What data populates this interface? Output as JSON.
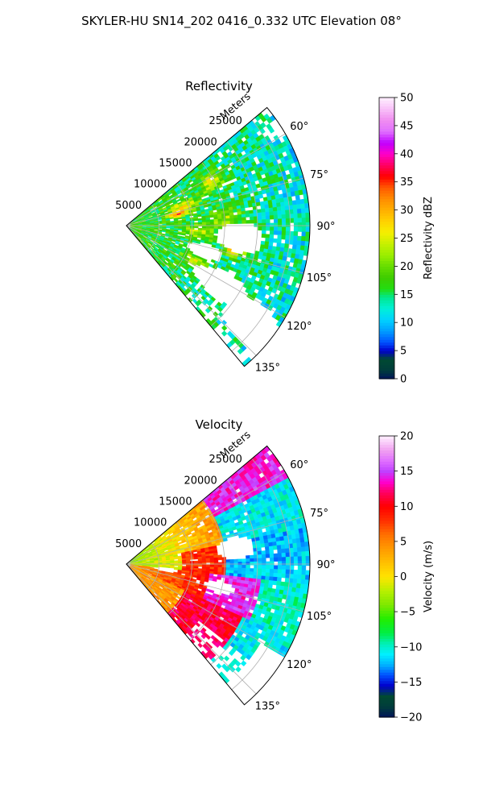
{
  "figure": {
    "suptitle": "SKYLER-HU  SN14_202  0416_0.332 UTC Elevation 08°"
  },
  "chart_data": [
    {
      "type": "heatmap",
      "title": "Reflectivity",
      "range_label": "Meters",
      "range_ticks": [
        5000,
        10000,
        15000,
        20000,
        25000
      ],
      "range_max": 28000,
      "azimuth_ticks": [
        "60°",
        "75°",
        "90°",
        "105°",
        "120°",
        "135°"
      ],
      "azimuth_values": [
        60,
        75,
        90,
        105,
        120,
        135
      ],
      "azimuth_range": [
        50,
        140
      ],
      "grid": true,
      "colorbar": {
        "label": "Reflectivity dBZ",
        "min": 0,
        "max": 50,
        "ticks": [
          0,
          5,
          10,
          15,
          20,
          25,
          30,
          35,
          40,
          45,
          50
        ],
        "tick_labels": [
          "0",
          "5",
          "10",
          "15",
          "20",
          "25",
          "30",
          "35",
          "40",
          "45",
          "50"
        ],
        "stops": [
          {
            "v": 0,
            "c": "#00145a"
          },
          {
            "v": 1.5,
            "c": "#003c3c"
          },
          {
            "v": 3.5,
            "c": "#004a32"
          },
          {
            "v": 5,
            "c": "#0000cd"
          },
          {
            "v": 6.5,
            "c": "#0050ff"
          },
          {
            "v": 8.5,
            "c": "#009cff"
          },
          {
            "v": 10.5,
            "c": "#00d2ff"
          },
          {
            "v": 12.5,
            "c": "#00f0d8"
          },
          {
            "v": 14.5,
            "c": "#00e890"
          },
          {
            "v": 16,
            "c": "#22dd11"
          },
          {
            "v": 18,
            "c": "#3ecc00"
          },
          {
            "v": 20,
            "c": "#66dd00"
          },
          {
            "v": 22,
            "c": "#99ee00"
          },
          {
            "v": 24,
            "c": "#c6f000"
          },
          {
            "v": 26,
            "c": "#f5f000"
          },
          {
            "v": 28,
            "c": "#ffd200"
          },
          {
            "v": 30,
            "c": "#ffb000"
          },
          {
            "v": 32,
            "c": "#ff8c00"
          },
          {
            "v": 34,
            "c": "#ff5a00"
          },
          {
            "v": 36,
            "c": "#ff0000"
          },
          {
            "v": 38,
            "c": "#ff0060"
          },
          {
            "v": 40,
            "c": "#ff00c8"
          },
          {
            "v": 42,
            "c": "#c000ff"
          },
          {
            "v": 44,
            "c": "#e070ff"
          },
          {
            "v": 46,
            "c": "#f08cf0"
          },
          {
            "v": 48,
            "c": "#f8c0f8"
          },
          {
            "v": 50,
            "c": "#fff0ff"
          }
        ]
      }
    },
    {
      "type": "heatmap",
      "title": "Velocity",
      "range_label": "Meters",
      "range_ticks": [
        5000,
        10000,
        15000,
        20000,
        25000
      ],
      "range_max": 28000,
      "azimuth_ticks": [
        "60°",
        "75°",
        "90°",
        "105°",
        "120°",
        "135°"
      ],
      "azimuth_values": [
        60,
        75,
        90,
        105,
        120,
        135
      ],
      "azimuth_range": [
        50,
        140
      ],
      "grid": true,
      "colorbar": {
        "label": "Velocity (m/s)",
        "min": -20,
        "max": 20,
        "ticks": [
          -20,
          -15,
          -10,
          -5,
          0,
          5,
          10,
          15,
          20
        ],
        "tick_labels": [
          "−20",
          "−15",
          "−10",
          "−5",
          "0",
          "5",
          "10",
          "15",
          "20"
        ],
        "stops": [
          {
            "v": -20,
            "c": "#00145a"
          },
          {
            "v": -18.5,
            "c": "#003c3c"
          },
          {
            "v": -17,
            "c": "#004a32"
          },
          {
            "v": -15.5,
            "c": "#0000cd"
          },
          {
            "v": -14,
            "c": "#0050ff"
          },
          {
            "v": -12.5,
            "c": "#00b4ff"
          },
          {
            "v": -11,
            "c": "#00f0ff"
          },
          {
            "v": -9.5,
            "c": "#00f0b4"
          },
          {
            "v": -8,
            "c": "#00ee44"
          },
          {
            "v": -6,
            "c": "#22ee00"
          },
          {
            "v": -4,
            "c": "#7ee800"
          },
          {
            "v": -2,
            "c": "#b8f000"
          },
          {
            "v": 0,
            "c": "#ffe400"
          },
          {
            "v": 2,
            "c": "#ffc000"
          },
          {
            "v": 4,
            "c": "#ff9a00"
          },
          {
            "v": 6,
            "c": "#ff7000"
          },
          {
            "v": 8,
            "c": "#ff3000"
          },
          {
            "v": 10,
            "c": "#ff0000"
          },
          {
            "v": 12,
            "c": "#ff0060"
          },
          {
            "v": 13.5,
            "c": "#ff00d0"
          },
          {
            "v": 15,
            "c": "#c040ff"
          },
          {
            "v": 16.5,
            "c": "#e070ff"
          },
          {
            "v": 18,
            "c": "#f0a0f0"
          },
          {
            "v": 20,
            "c": "#fff0ff"
          }
        ]
      }
    }
  ]
}
